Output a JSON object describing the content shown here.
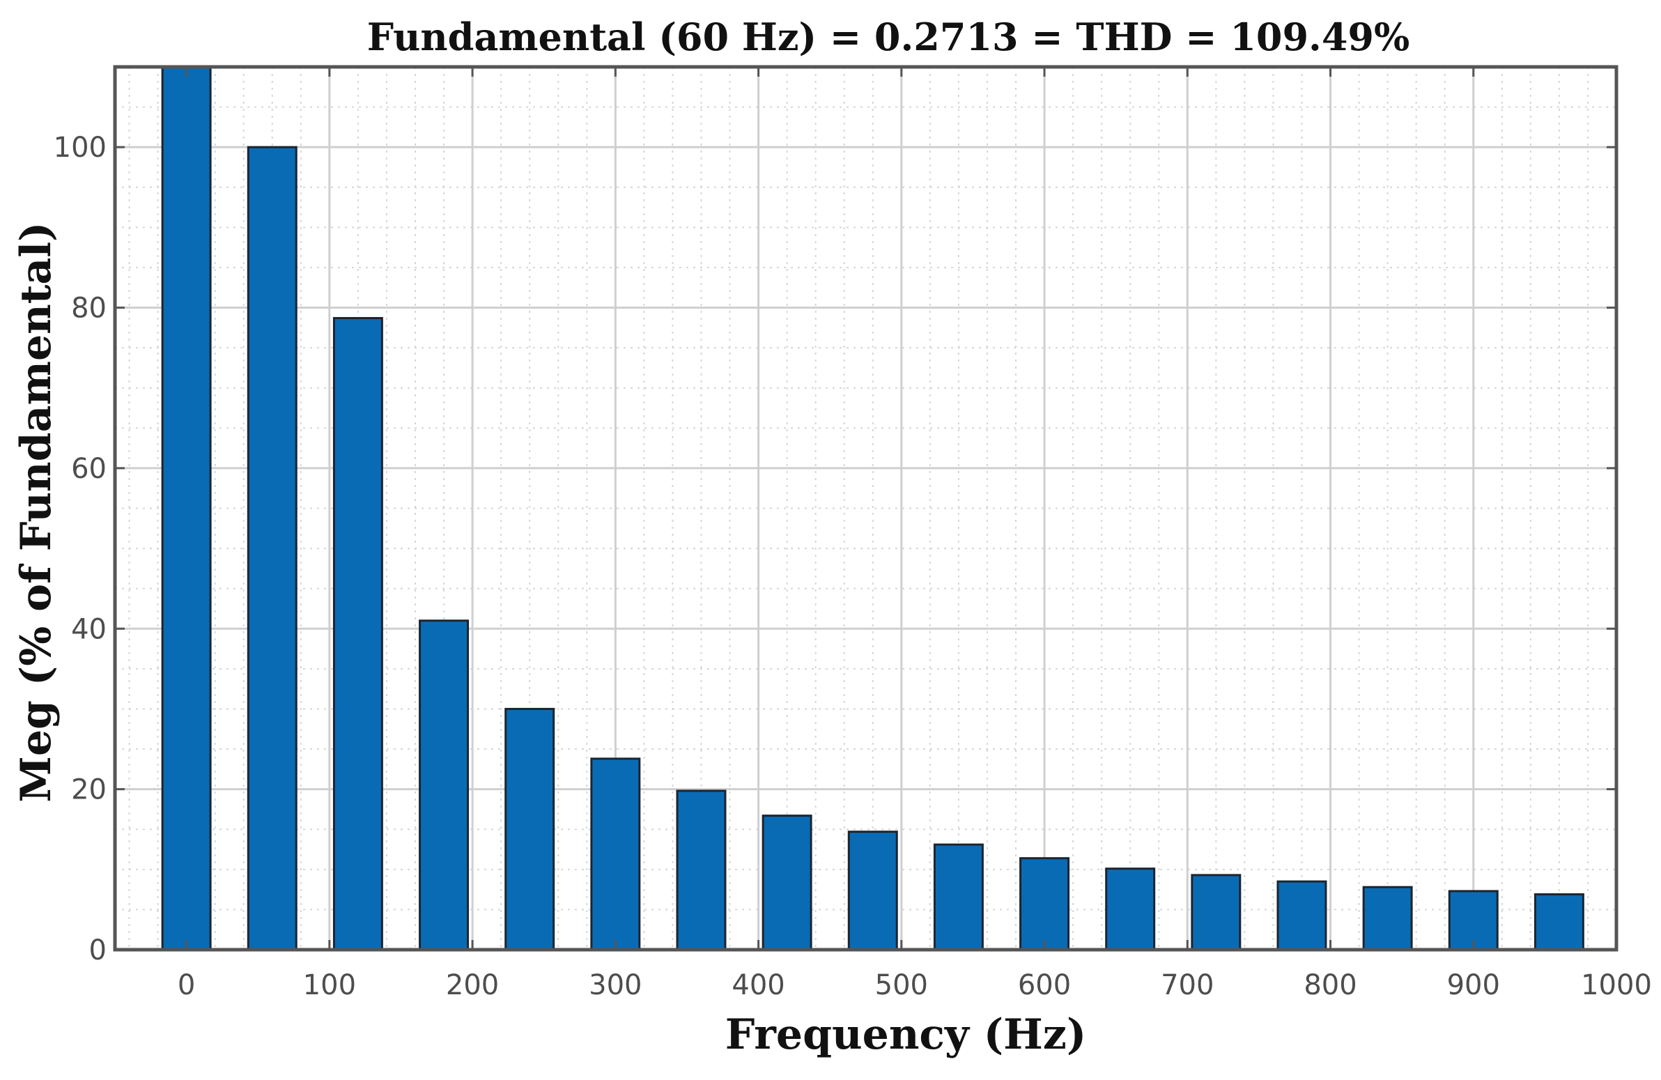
{
  "chart_data": {
    "type": "bar",
    "title": "Fundamental (60 Hz) = 0.2713 = THD = 109.49%",
    "xlabel": "Frequency (Hz)",
    "ylabel": "Meg (% of Fundamental)",
    "xlim": [
      -50,
      1000
    ],
    "ylim": [
      0,
      110
    ],
    "xticks": [
      0,
      100,
      200,
      300,
      400,
      500,
      600,
      700,
      800,
      900,
      1000
    ],
    "xtick_labels": [
      "0",
      "100",
      "200",
      "300",
      "400",
      "500",
      "600",
      "700",
      "800",
      "900",
      "1000"
    ],
    "yticks": [
      0,
      20,
      40,
      60,
      80,
      100
    ],
    "ytick_labels": [
      "0",
      "20",
      "40",
      "60",
      "80",
      "100"
    ],
    "grid": true,
    "x": [
      0,
      60,
      120,
      180,
      240,
      300,
      360,
      420,
      480,
      540,
      600,
      660,
      720,
      780,
      840,
      900,
      960
    ],
    "values": [
      110,
      100,
      78.7,
      41,
      30,
      23.8,
      19.8,
      16.7,
      14.7,
      13.1,
      11.4,
      10.1,
      9.3,
      8.5,
      7.8,
      7.3,
      6.9
    ],
    "colors": {
      "bar": "#0a6bb5",
      "bar_edge": "#1b2530",
      "grid": "#cfcfcf",
      "axes": "#555555",
      "background": "#ffffff"
    }
  }
}
